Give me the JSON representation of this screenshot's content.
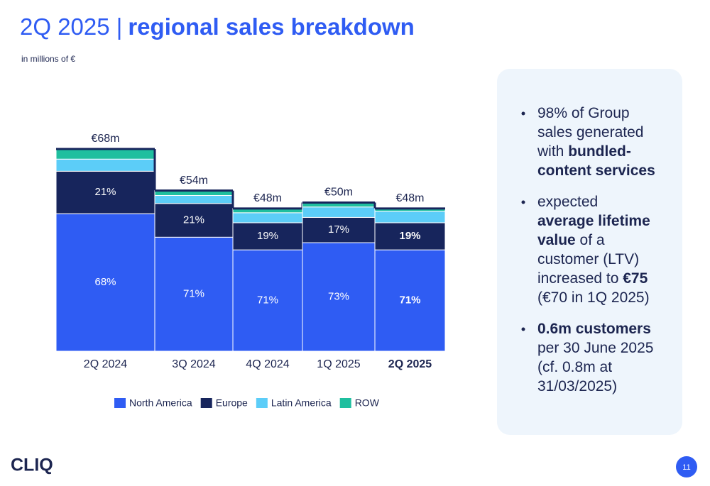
{
  "chart_data": {
    "type": "mekko-stacked",
    "categories": [
      "2Q 2024",
      "3Q 2024",
      "4Q 2024",
      "1Q 2025",
      "2Q 2025"
    ],
    "totals": {
      "values": [
        68,
        54,
        48,
        50,
        48
      ],
      "value_labels": [
        "€68m",
        "€54m",
        "€48m",
        "€50m",
        "€48m"
      ]
    },
    "series": [
      {
        "name": "North America",
        "color": "#2f5cf3",
        "values": [
          68,
          71,
          71,
          73,
          71
        ],
        "value_labels": [
          "68%",
          "71%",
          "71%",
          "73%",
          "71%"
        ]
      },
      {
        "name": "Europe",
        "color": "#17255c",
        "values": [
          21,
          21,
          19,
          17,
          19
        ],
        "value_labels": [
          "21%",
          "21%",
          "19%",
          "17%",
          "19%"
        ]
      },
      {
        "name": "Latin America",
        "color": "#5ccdf8",
        "values": [
          6,
          5,
          7,
          7,
          8
        ]
      },
      {
        "name": "ROW",
        "color": "#1fbf9f",
        "values": [
          5,
          3,
          3,
          3,
          2
        ]
      }
    ],
    "legend": "bottom"
  },
  "slide": {
    "title": {
      "lead": "2Q 2025 |",
      "main": "regional sales breakdown"
    },
    "subtitle": "in millions of €",
    "bullets": [
      {
        "lines": [
          [
            {
              "text": "98% of Group"
            }
          ],
          [
            {
              "text": "sales generated"
            }
          ],
          [
            {
              "text": "with "
            },
            {
              "text": "bundled-",
              "bold": true
            }
          ],
          [
            {
              "text": "content services",
              "bold": true
            }
          ]
        ]
      },
      {
        "lines": [
          [
            {
              "text": "expected"
            }
          ],
          [
            {
              "text": "average lifetime",
              "bold": true
            }
          ],
          [
            {
              "text": "value",
              "bold": true
            },
            {
              "text": " of a"
            }
          ],
          [
            {
              "text": "customer (LTV)"
            }
          ],
          [
            {
              "text": "increased to "
            },
            {
              "text": "€75",
              "bold": true
            }
          ],
          [
            {
              "text": "(€70 in 1Q 2025)"
            }
          ]
        ]
      },
      {
        "lines": [
          [
            {
              "text": "0.6m customers",
              "bold": true
            }
          ],
          [
            {
              "text": "per 30 June 2025"
            }
          ],
          [
            {
              "text": "(cf. 0.8m at"
            }
          ],
          [
            {
              "text": "31/03/2025)"
            }
          ]
        ]
      }
    ],
    "logo": "CLIQ",
    "page_number": "11"
  }
}
